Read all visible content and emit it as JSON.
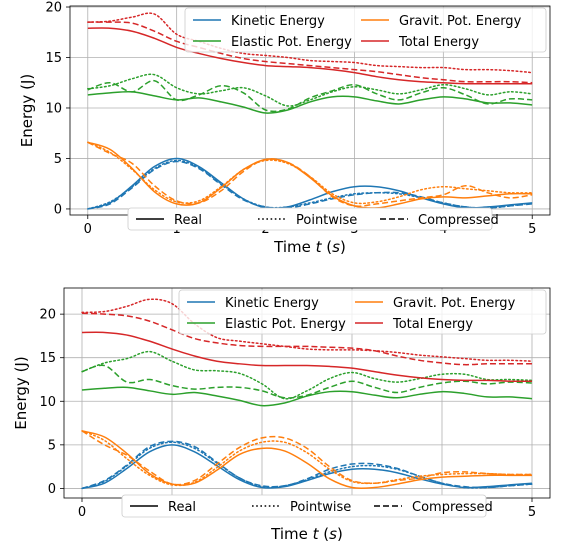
{
  "colors": {
    "kinetic": "#1f77b4",
    "gravit": "#ff7f0e",
    "elastic": "#2ca02c",
    "total": "#d62728",
    "grid": "#b0b0b0",
    "axis": "#000000"
  },
  "legend_styles": [
    {
      "label": "Real",
      "dash": "solid"
    },
    {
      "label": "Pointwise",
      "dash": "dotted"
    },
    {
      "label": "Compressed",
      "dash": "dashed"
    }
  ],
  "chart_data": [
    {
      "type": "line",
      "xlabel": "Time t (s)",
      "ylabel": "Energy (J)",
      "xlim": [
        -0.2,
        5.2
      ],
      "ylim": [
        -0.6,
        20.1
      ],
      "xticks": [
        0,
        1,
        2,
        3,
        4,
        5
      ],
      "yticks": [
        0,
        5,
        10,
        15,
        20
      ],
      "grid": true,
      "legend": {
        "position": "top-right",
        "entries": [
          "Kinetic Energy",
          "Gravit. Pot. Energy",
          "Elastic Pot. Energy",
          "Total Energy"
        ]
      },
      "x": [
        0,
        0.25,
        0.5,
        0.75,
        1,
        1.25,
        1.5,
        1.75,
        2,
        2.25,
        2.5,
        2.75,
        3,
        3.25,
        3.5,
        3.75,
        4,
        4.25,
        4.5,
        4.75,
        5
      ],
      "series": [
        {
          "name": "Kinetic Energy",
          "style": "Real",
          "color_key": "kinetic",
          "values": [
            0,
            0.6,
            2.3,
            4.2,
            5.0,
            4.2,
            2.6,
            1.0,
            0.1,
            0.2,
            0.9,
            1.7,
            2.2,
            2.2,
            1.8,
            1.1,
            0.5,
            0.1,
            0.2,
            0.4,
            0.6
          ]
        },
        {
          "name": "Kinetic Energy",
          "style": "Pointwise",
          "color_key": "kinetic",
          "values": [
            0,
            0.7,
            2.2,
            4.0,
            4.8,
            4.1,
            2.5,
            1.0,
            0.2,
            0.2,
            0.6,
            1.1,
            1.5,
            1.6,
            1.5,
            1.1,
            0.6,
            0.2,
            0.1,
            0.3,
            0.6
          ]
        },
        {
          "name": "Kinetic Energy",
          "style": "Compressed",
          "color_key": "kinetic",
          "values": [
            0,
            0.5,
            2.1,
            3.9,
            4.7,
            4.0,
            2.4,
            0.9,
            0.2,
            0.1,
            0.5,
            1.0,
            1.4,
            1.6,
            1.6,
            1.2,
            0.6,
            0.2,
            0.1,
            0.3,
            0.5
          ]
        },
        {
          "name": "Gravit. Pot. Energy",
          "style": "Real",
          "color_key": "gravit",
          "values": [
            6.6,
            5.9,
            4.0,
            1.7,
            0.5,
            0.6,
            2.1,
            3.9,
            4.9,
            4.6,
            3.1,
            1.3,
            0.3,
            0.1,
            0.5,
            1.0,
            1.2,
            1.1,
            1.3,
            1.5,
            1.5
          ]
        },
        {
          "name": "Gravit. Pot. Energy",
          "style": "Pointwise",
          "color_key": "gravit",
          "values": [
            6.6,
            5.6,
            3.9,
            1.9,
            0.7,
            0.8,
            2.2,
            3.9,
            4.8,
            4.5,
            3.2,
            1.5,
            0.6,
            0.7,
            1.2,
            1.9,
            2.2,
            2.0,
            1.8,
            1.6,
            1.6
          ]
        },
        {
          "name": "Gravit. Pot. Energy",
          "style": "Compressed",
          "color_key": "gravit",
          "values": [
            6.6,
            5.5,
            4.5,
            2.3,
            0.8,
            0.6,
            1.8,
            3.7,
            4.9,
            4.6,
            3.2,
            1.2,
            0.3,
            0.5,
            0.8,
            1.1,
            1.4,
            2.3,
            1.6,
            1.1,
            1.4
          ]
        },
        {
          "name": "Elastic Pot. Energy",
          "style": "Real",
          "color_key": "elastic",
          "values": [
            11.3,
            11.5,
            11.6,
            11.2,
            10.8,
            11.0,
            10.6,
            10.1,
            9.5,
            9.8,
            10.6,
            11.1,
            11.1,
            10.7,
            10.4,
            10.8,
            11.1,
            10.9,
            10.5,
            10.5,
            10.3
          ]
        },
        {
          "name": "Elastic Pot. Energy",
          "style": "Pointwise",
          "color_key": "elastic",
          "values": [
            11.9,
            12.2,
            12.9,
            13.3,
            12.0,
            11.4,
            11.7,
            12.0,
            11.2,
            10.2,
            10.8,
            11.6,
            12.1,
            11.8,
            11.4,
            11.8,
            12.3,
            11.9,
            11.3,
            11.6,
            11.4
          ]
        },
        {
          "name": "Elastic Pot. Energy",
          "style": "Compressed",
          "color_key": "elastic",
          "values": [
            11.8,
            12.5,
            11.6,
            12.7,
            10.8,
            11.3,
            12.2,
            11.5,
            9.8,
            9.9,
            11.0,
            11.7,
            12.3,
            11.4,
            10.8,
            11.5,
            12.0,
            11.3,
            10.4,
            10.9,
            10.8
          ]
        },
        {
          "name": "Total Energy",
          "style": "Real",
          "color_key": "total",
          "values": [
            17.9,
            17.9,
            17.6,
            16.9,
            16.0,
            15.4,
            14.9,
            14.5,
            14.2,
            14.1,
            14.0,
            13.8,
            13.5,
            13.1,
            12.8,
            12.6,
            12.5,
            12.4,
            12.4,
            12.4,
            12.4
          ]
        },
        {
          "name": "Total Energy",
          "style": "Pointwise",
          "color_key": "total",
          "values": [
            18.5,
            18.6,
            19.0,
            19.3,
            17.3,
            16.6,
            15.9,
            15.4,
            15.2,
            15.0,
            14.7,
            14.6,
            14.5,
            14.2,
            14.1,
            14.0,
            14.0,
            13.8,
            13.8,
            13.7,
            13.5
          ]
        },
        {
          "name": "Total Energy",
          "style": "Compressed",
          "color_key": "total",
          "values": [
            18.5,
            18.5,
            18.4,
            17.6,
            16.6,
            16.0,
            15.4,
            14.9,
            14.6,
            14.4,
            14.2,
            14.0,
            13.8,
            13.6,
            13.3,
            13.0,
            12.8,
            12.6,
            12.6,
            12.6,
            12.5
          ]
        }
      ]
    },
    {
      "type": "line",
      "xlabel": "Time t (s)",
      "ylabel": "Energy (J)",
      "xlim": [
        -0.2,
        5.2
      ],
      "ylim": [
        -1.1,
        23.0
      ],
      "xticks": [
        0,
        1,
        2,
        3,
        4,
        5
      ],
      "yticks": [
        0,
        5,
        10,
        15,
        20
      ],
      "grid": true,
      "legend": {
        "position": "top-right",
        "entries": [
          "Kinetic Energy",
          "Gravit. Pot. Energy",
          "Elastic Pot. Energy",
          "Total Energy"
        ]
      },
      "x": [
        0,
        0.25,
        0.5,
        0.75,
        1,
        1.25,
        1.5,
        1.75,
        2,
        2.25,
        2.5,
        2.75,
        3,
        3.25,
        3.5,
        3.75,
        4,
        4.25,
        4.5,
        4.75,
        5
      ],
      "series": [
        {
          "name": "Kinetic Energy",
          "style": "Real",
          "color_key": "kinetic",
          "values": [
            0,
            0.6,
            2.3,
            4.2,
            5.0,
            4.2,
            2.6,
            1.0,
            0.1,
            0.2,
            0.9,
            1.7,
            2.2,
            2.2,
            1.8,
            1.1,
            0.5,
            0.1,
            0.2,
            0.4,
            0.6
          ]
        },
        {
          "name": "Kinetic Energy",
          "style": "Pointwise",
          "color_key": "kinetic",
          "values": [
            0,
            0.8,
            2.6,
            4.6,
            5.3,
            4.6,
            2.9,
            1.2,
            0.2,
            0.3,
            1.0,
            1.9,
            2.5,
            2.6,
            2.2,
            1.4,
            0.6,
            0.1,
            0.1,
            0.3,
            0.5
          ]
        },
        {
          "name": "Kinetic Energy",
          "style": "Compressed",
          "color_key": "kinetic",
          "values": [
            0,
            0.9,
            2.7,
            4.8,
            5.4,
            4.8,
            3.0,
            1.2,
            0.3,
            0.3,
            1.1,
            2.2,
            2.8,
            2.8,
            2.3,
            1.4,
            0.6,
            0.2,
            0.1,
            0.3,
            0.5
          ]
        },
        {
          "name": "Gravit. Pot. Energy",
          "style": "Real",
          "color_key": "gravit",
          "values": [
            6.6,
            5.9,
            4.0,
            1.7,
            0.5,
            0.6,
            2.1,
            3.9,
            4.6,
            4.3,
            2.9,
            1.1,
            0.1,
            0.1,
            0.5,
            1.0,
            1.3,
            1.4,
            1.5,
            1.5,
            1.5
          ]
        },
        {
          "name": "Gravit. Pot. Energy",
          "style": "Pointwise",
          "color_key": "gravit",
          "values": [
            6.6,
            5.5,
            3.4,
            1.5,
            0.4,
            0.7,
            2.4,
            4.3,
            5.3,
            5.3,
            4.1,
            2.2,
            0.8,
            0.6,
            1.0,
            1.4,
            1.6,
            1.7,
            1.7,
            1.6,
            1.6
          ]
        },
        {
          "name": "Gravit. Pot. Energy",
          "style": "Compressed",
          "color_key": "gravit",
          "values": [
            6.6,
            5.0,
            3.8,
            2.0,
            0.5,
            0.9,
            2.8,
            4.7,
            5.8,
            5.8,
            4.6,
            2.5,
            0.9,
            0.6,
            0.9,
            1.2,
            1.8,
            1.9,
            1.7,
            1.6,
            1.6
          ]
        },
        {
          "name": "Elastic Pot. Energy",
          "style": "Real",
          "color_key": "elastic",
          "values": [
            11.3,
            11.5,
            11.6,
            11.2,
            10.8,
            11.0,
            10.6,
            10.1,
            9.5,
            9.8,
            10.6,
            11.1,
            11.1,
            10.7,
            10.4,
            10.8,
            11.1,
            10.9,
            10.5,
            10.5,
            10.3
          ]
        },
        {
          "name": "Elastic Pot. Energy",
          "style": "Pointwise",
          "color_key": "elastic",
          "values": [
            13.4,
            14.4,
            14.9,
            15.7,
            14.6,
            13.6,
            13.5,
            13.2,
            12.0,
            10.3,
            11.2,
            12.6,
            13.3,
            12.6,
            12.2,
            12.6,
            13.1,
            13.1,
            12.5,
            12.5,
            12.4
          ]
        },
        {
          "name": "Elastic Pot. Energy",
          "style": "Compressed",
          "color_key": "elastic",
          "values": [
            13.4,
            14.1,
            12.2,
            12.5,
            11.8,
            11.4,
            11.6,
            11.6,
            11.2,
            10.4,
            10.7,
            11.6,
            12.3,
            11.6,
            11.0,
            11.6,
            12.1,
            12.3,
            12.0,
            12.2,
            12.1
          ]
        },
        {
          "name": "Total Energy",
          "style": "Real",
          "color_key": "total",
          "values": [
            17.9,
            17.9,
            17.6,
            16.9,
            16.0,
            15.2,
            14.6,
            14.3,
            14.1,
            14.1,
            14.1,
            14.0,
            13.8,
            13.4,
            13.0,
            12.7,
            12.5,
            12.4,
            12.4,
            12.3,
            12.3
          ]
        },
        {
          "name": "Total Energy",
          "style": "Pointwise",
          "color_key": "total",
          "values": [
            20.2,
            20.3,
            20.9,
            21.7,
            21.2,
            18.9,
            17.3,
            16.9,
            16.6,
            16.3,
            16.0,
            15.9,
            15.9,
            15.8,
            15.6,
            15.3,
            15.1,
            14.9,
            14.7,
            14.7,
            14.6
          ]
        },
        {
          "name": "Total Energy",
          "style": "Compressed",
          "color_key": "total",
          "values": [
            20.1,
            20.0,
            19.8,
            19.2,
            18.2,
            17.2,
            16.7,
            16.4,
            16.3,
            16.3,
            16.3,
            16.2,
            16.1,
            15.8,
            15.2,
            14.7,
            14.4,
            14.2,
            14.3,
            14.3,
            14.3
          ]
        }
      ]
    }
  ]
}
